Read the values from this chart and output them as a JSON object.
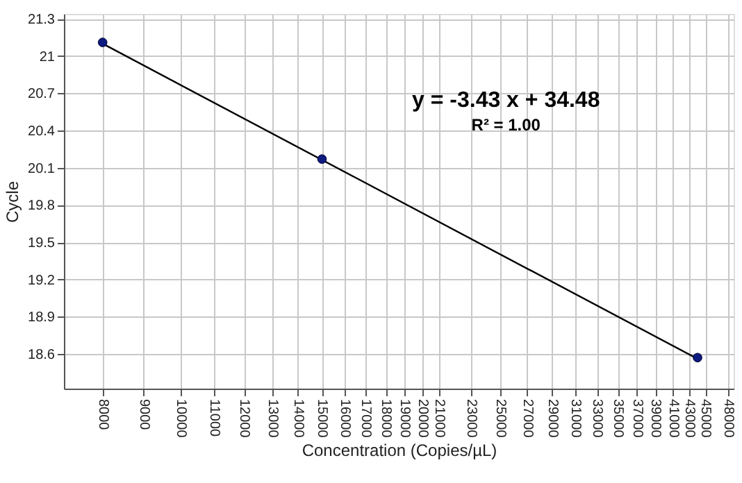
{
  "chart_data": {
    "type": "scatter",
    "xlabel": "Concentration (Copies/µL)",
    "ylabel": "Cycle",
    "log": "x",
    "grid": true,
    "marker": "circle",
    "xlim": [
      7160,
      48800
    ],
    "xticks": [
      8000,
      9000,
      10000,
      11000,
      12000,
      13000,
      14000,
      15000,
      16000,
      17000,
      18000,
      19000,
      20000,
      21000,
      23000,
      25000,
      27000,
      29000,
      31000,
      33000,
      35000,
      37000,
      39000,
      41000,
      43000,
      45000,
      48000
    ],
    "ylim": [
      18.32,
      21.34
    ],
    "yticks": [
      18.6,
      18.9,
      19.2,
      19.5,
      19.8,
      20.1,
      20.4,
      20.7,
      21,
      21.3
    ],
    "series": [
      {
        "type": "line",
        "marker": "none",
        "color": "#000000",
        "x": [
          8000,
          44000
        ],
        "values": [
          21.1,
          18.56
        ]
      },
      {
        "color": "#0d1a80",
        "x": [
          8000,
          15000,
          44000
        ],
        "values": [
          21.11,
          20.17,
          18.57
        ]
      }
    ],
    "annotations": [
      "y = -3.43 x + 34.48",
      "R² = 1.00"
    ]
  }
}
